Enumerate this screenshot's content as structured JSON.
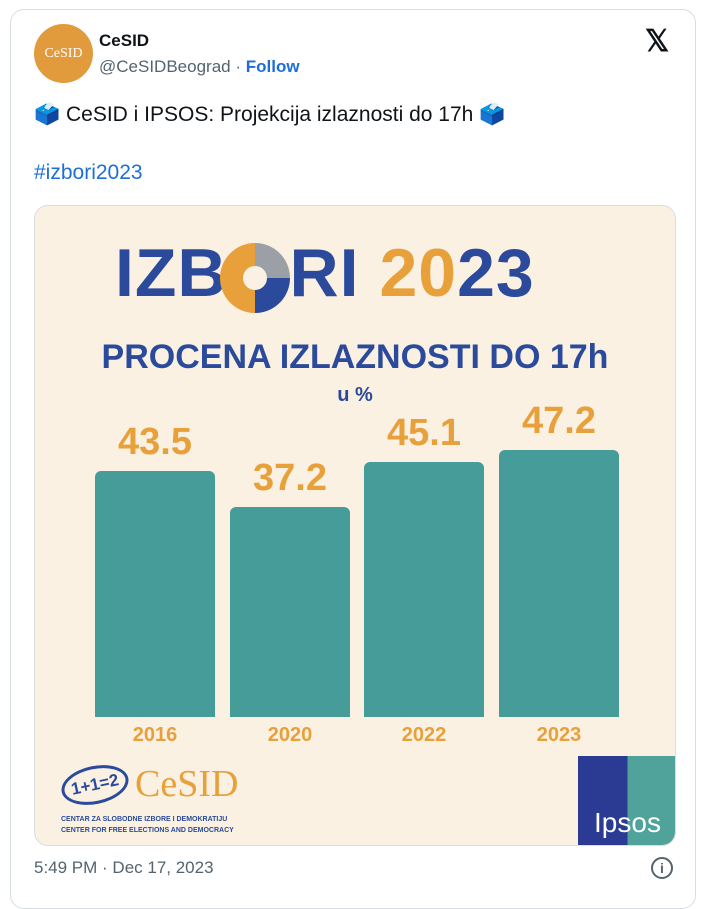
{
  "tweet": {
    "author_name": "CeSID",
    "handle": "@CeSIDBeograd",
    "separator": "·",
    "follow_label": "Follow",
    "avatar_text": "CeSID",
    "text": "🗳️ CeSID i IPSOS: Projekcija izlaznosti do 17h 🗳️",
    "hashtag": "#izbori2023",
    "timestamp": "5:49 PM · Dec 17, 2023",
    "platform_icon": "x-logo",
    "info_icon": "info-icon"
  },
  "chart_data": {
    "type": "bar",
    "title_part1": "IZB",
    "title_part2": "RI",
    "title_year_a": "20",
    "title_year_b": "23",
    "subtitle": "PROCENA IZLAZNOSTI DO 17h",
    "unit": "u %",
    "categories": [
      "2016",
      "2020",
      "2022",
      "2023"
    ],
    "values": [
      43.5,
      37.2,
      45.1,
      47.2
    ],
    "value_labels": [
      "43.5",
      "37.2",
      "45.1",
      "47.2"
    ],
    "ylim": [
      0,
      50
    ],
    "colors": {
      "bar": "#469c99",
      "value": "#e8a03a",
      "title": "#2b4a9b"
    }
  },
  "logos": {
    "cesid_mark": "1+1=2",
    "cesid_word": "CeSID",
    "cesid_line1": "CENTAR ZA SLOBODNE IZBORE I DEMOKRATIJU",
    "cesid_line2": "CENTER FOR FREE ELECTIONS AND DEMOCRACY",
    "ipsos": "Ipsos"
  }
}
